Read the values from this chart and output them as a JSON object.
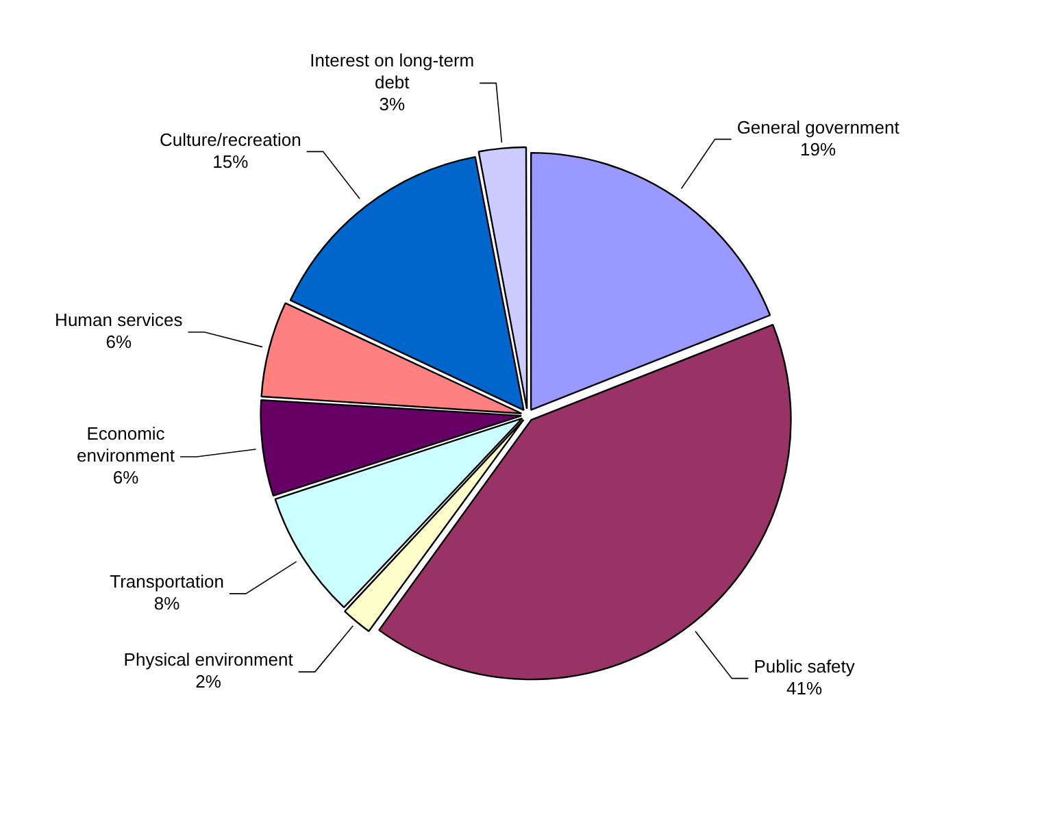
{
  "chart_data": {
    "type": "pie",
    "categories": [
      "General government",
      "Public safety",
      "Physical environment",
      "Transportation",
      "Economic environment",
      "Human services",
      "Culture/recreation",
      "Interest on long-term debt"
    ],
    "values": [
      19,
      41,
      2,
      8,
      6,
      6,
      15,
      3
    ],
    "value_labels": [
      "19%",
      "41%",
      "2%",
      "8%",
      "6%",
      "6%",
      "15%",
      "3%"
    ],
    "colors": [
      "#9999ff",
      "#993366",
      "#ffffcc",
      "#ccffff",
      "#660066",
      "#ff8080",
      "#0066cc",
      "#ccccff"
    ],
    "legend": false
  }
}
